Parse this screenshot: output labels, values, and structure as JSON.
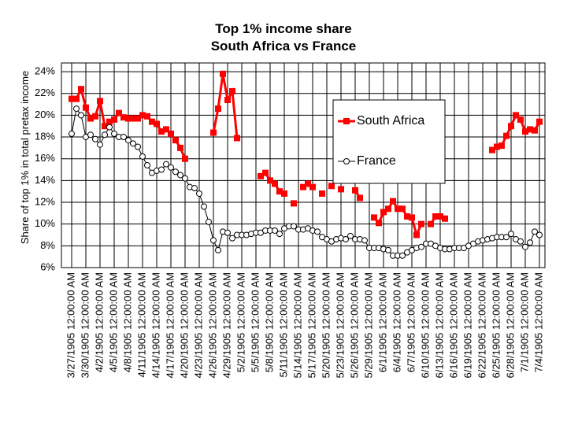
{
  "chart_data": {
    "type": "line",
    "title": "Top 1% income share",
    "subtitle": "South Africa vs France",
    "y_label": "Share  of top 1% in total pretax income",
    "categories": [
      "3/27/1905 12:00:00 AM",
      null,
      null,
      "3/30/1905 12:00:00 AM",
      null,
      null,
      "4/2/1905 12:00:00 AM",
      null,
      null,
      "4/5/1905 12:00:00 AM",
      null,
      null,
      "4/8/1905 12:00:00 AM",
      null,
      null,
      "4/11/1905 12:00:00 AM",
      null,
      null,
      "4/14/1905 12:00:00 AM",
      null,
      null,
      "4/17/1905 12:00:00 AM",
      null,
      null,
      "4/20/1905 12:00:00 AM",
      null,
      null,
      "4/23/1905 12:00:00 AM",
      null,
      null,
      "4/26/1905 12:00:00 AM",
      null,
      null,
      "4/29/1905 12:00:00 AM",
      null,
      null,
      "5/2/1905 12:00:00 AM",
      null,
      null,
      "5/5/1905 12:00:00 AM",
      null,
      null,
      "5/8/1905 12:00:00 AM",
      null,
      null,
      "5/11/1905 12:00:00 AM",
      null,
      null,
      "5/14/1905 12:00:00 AM",
      null,
      null,
      "5/17/1905 12:00:00 AM",
      null,
      null,
      "5/20/1905 12:00:00 AM",
      null,
      null,
      "5/23/1905 12:00:00 AM",
      null,
      null,
      "5/26/1905 12:00:00 AM",
      null,
      null,
      "5/29/1905 12:00:00 AM",
      null,
      null,
      "6/1/1905 12:00:00 AM",
      null,
      null,
      "6/4/1905 12:00:00 AM",
      null,
      null,
      "6/7/1905 12:00:00 AM",
      null,
      null,
      "6/10/1905 12:00:00 AM",
      null,
      null,
      "6/13/1905 12:00:00 AM",
      null,
      null,
      "6/16/1905 12:00:00 AM",
      null,
      null,
      "6/19/1905 12:00:00 AM",
      null,
      null,
      "6/22/1905 12:00:00 AM",
      null,
      null,
      "6/25/1905 12:00:00 AM",
      null,
      null,
      "6/28/1905 12:00:00 AM",
      null,
      null,
      "7/1/1905 12:00:00 AM",
      null,
      null,
      "7/4/1905 12:00:00 AM"
    ],
    "series": [
      {
        "name": "South Africa",
        "color": "#ff0000",
        "marker": "square",
        "values": [
          21.5,
          21.5,
          22.4,
          20.7,
          19.7,
          19.9,
          21.3,
          19.0,
          19.4,
          19.6,
          20.2,
          19.8,
          19.7,
          19.7,
          19.7,
          20.0,
          19.9,
          19.4,
          19.2,
          18.5,
          18.7,
          18.3,
          17.7,
          17.0,
          16.0,
          null,
          null,
          null,
          null,
          null,
          18.4,
          20.6,
          23.8,
          21.4,
          22.2,
          17.9,
          null,
          null,
          null,
          null,
          14.4,
          14.7,
          14.0,
          13.7,
          13.0,
          12.8,
          null,
          11.9,
          null,
          13.4,
          13.7,
          13.4,
          null,
          12.8,
          null,
          13.5,
          null,
          13.2,
          null,
          null,
          13.1,
          12.4,
          null,
          null,
          10.6,
          10.1,
          11.1,
          11.4,
          12.1,
          11.4,
          11.4,
          10.7,
          10.6,
          9.0,
          10.0,
          null,
          10.0,
          10.7,
          10.7,
          10.5,
          null,
          null,
          null,
          null,
          null,
          null,
          null,
          null,
          null,
          16.8,
          17.1,
          17.2,
          18.1,
          19.0,
          20.0,
          19.6,
          18.5,
          18.7,
          18.6,
          19.4
        ]
      },
      {
        "name": "France",
        "color": "#000000",
        "marker": "circle",
        "values": [
          18.3,
          20.6,
          20.0,
          18.0,
          18.2,
          17.8,
          17.3,
          18.2,
          18.9,
          18.3,
          18.0,
          18.0,
          17.7,
          17.4,
          17.1,
          16.2,
          15.4,
          14.7,
          14.9,
          15.0,
          15.5,
          15.2,
          14.8,
          14.5,
          14.2,
          13.4,
          13.3,
          12.8,
          11.6,
          10.2,
          8.5,
          7.6,
          9.3,
          9.2,
          8.7,
          9.0,
          9.0,
          9.0,
          9.1,
          9.2,
          9.2,
          9.4,
          9.4,
          9.4,
          9.1,
          9.6,
          9.8,
          9.8,
          9.5,
          9.5,
          9.6,
          9.4,
          9.3,
          8.8,
          8.6,
          8.4,
          8.6,
          8.7,
          8.6,
          8.9,
          8.6,
          8.6,
          8.5,
          7.8,
          7.8,
          7.8,
          7.7,
          7.6,
          7.1,
          7.1,
          7.1,
          7.4,
          7.6,
          7.8,
          7.9,
          8.2,
          8.2,
          8.0,
          7.8,
          7.7,
          7.7,
          7.8,
          7.8,
          7.8,
          8.0,
          8.2,
          8.4,
          8.5,
          8.6,
          8.7,
          8.8,
          8.8,
          8.8,
          9.1,
          8.6,
          8.4,
          7.9,
          8.3,
          9.3,
          9.0
        ]
      }
    ],
    "ylim": [
      6,
      24.8
    ],
    "yticks": [
      {
        "value": 6,
        "label": "6%"
      },
      {
        "value": 8,
        "label": "8%"
      },
      {
        "value": 10,
        "label": "10%"
      },
      {
        "value": 12,
        "label": "12%"
      },
      {
        "value": 14,
        "label": "14%"
      },
      {
        "value": 16,
        "label": "16%"
      },
      {
        "value": 18,
        "label": "18%"
      },
      {
        "value": 20,
        "label": "20%"
      },
      {
        "value": 22,
        "label": "22%"
      },
      {
        "value": 24,
        "label": "24%"
      }
    ],
    "grid": true,
    "legend": "upper right"
  }
}
